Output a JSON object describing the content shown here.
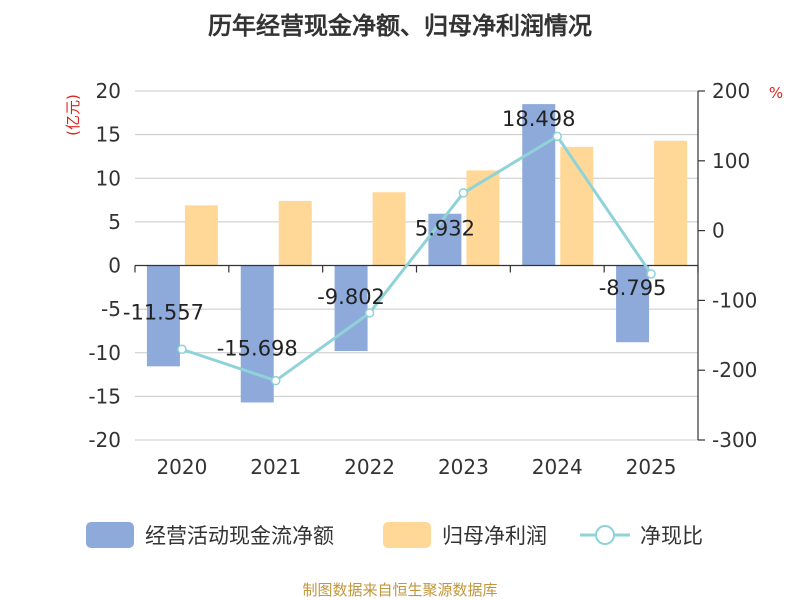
{
  "chart_data": {
    "type": "bar",
    "title": "历年经营现金净额、归母净利润情况",
    "categories": [
      "2020",
      "2021",
      "2022",
      "2023",
      "2024",
      "2025"
    ],
    "series": [
      {
        "name": "经营活动现金流净额",
        "type": "bar",
        "axis": "left",
        "values": [
          -11.557,
          -15.698,
          -9.802,
          5.932,
          18.498,
          -8.795
        ],
        "labels": [
          "-11.557",
          "-15.698",
          "-9.802",
          "5.932",
          "18.498",
          "-8.795"
        ],
        "color": "#8eaadb"
      },
      {
        "name": "归母净利润",
        "type": "bar",
        "axis": "left",
        "values": [
          6.9,
          7.4,
          8.4,
          10.9,
          13.6,
          14.3
        ],
        "color": "#ffd898"
      },
      {
        "name": "净现比",
        "type": "line",
        "axis": "right",
        "values": [
          -170,
          -215,
          -118,
          54,
          135,
          -62
        ],
        "color": "#8fd3d8"
      }
    ],
    "y_left": {
      "label": "(亿元)",
      "min": -20,
      "max": 20,
      "ticks": [
        -20,
        -15,
        -10,
        -5,
        0,
        5,
        10,
        15,
        20
      ]
    },
    "y_right": {
      "label": "%",
      "min": -300,
      "max": 200,
      "ticks": [
        -300,
        -200,
        -100,
        0,
        100,
        200
      ]
    },
    "grid": true,
    "legend_position": "bottom"
  },
  "footer": "制图数据来自恒生聚源数据库"
}
